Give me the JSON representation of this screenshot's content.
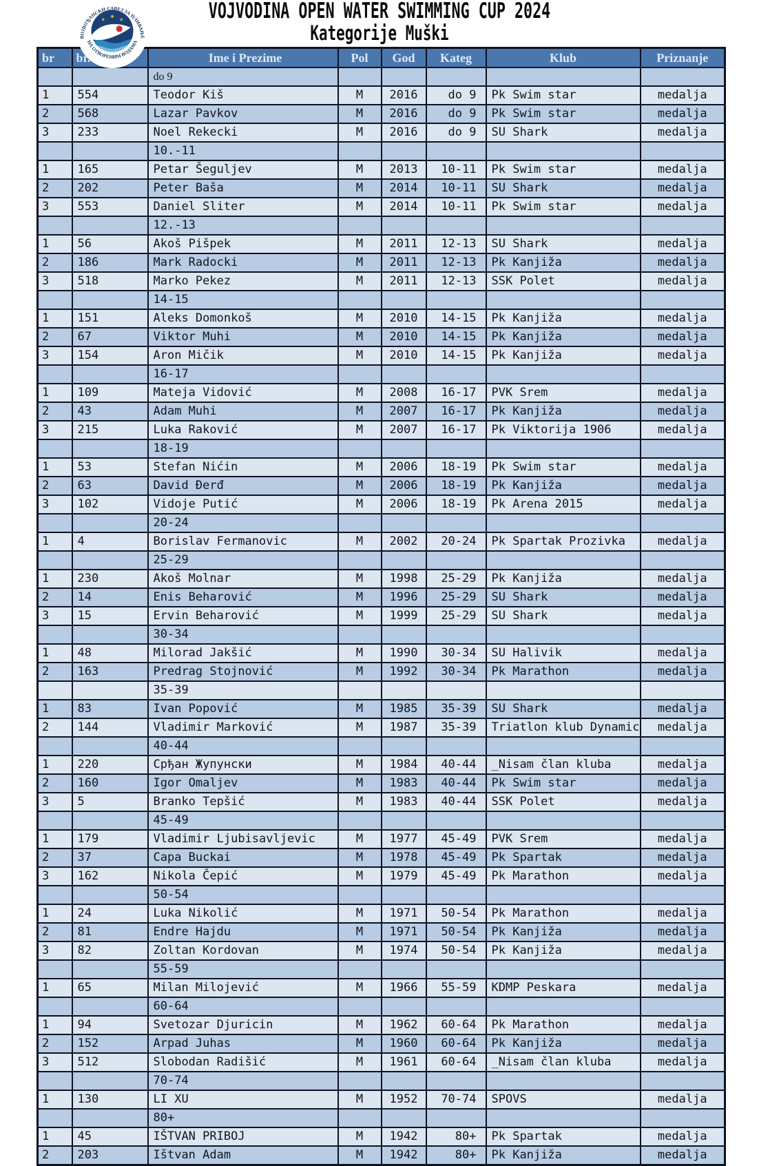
{
  "page": {
    "title": "VOJVODINA OPEN WATER SWIMMING CUP 2024",
    "subtitle": "Kategorije Muški"
  },
  "logo": {
    "text_top": "ВОЈВОЂАНСКИ САВЕЗ ЗА ПЛИВАЊЕ",
    "text_bottom": "НА ОТВОРЕНИМ ВОДАМА"
  },
  "colors": {
    "header_bg": "#4a77ae",
    "row_light": "#dce6f1",
    "row_medium": "#b8cce4",
    "border": "#0d1220",
    "logo_navy": "#1c3f77",
    "logo_wave_blue": "#2e86c1",
    "logo_wave_light": "#7db8e0",
    "logo_star_gold": "#f2c12e",
    "logo_red": "#d03030"
  },
  "table": {
    "columns": [
      "br",
      "br.",
      "Ime i Prezime",
      "Pol",
      "God",
      "Kateg",
      "Klub",
      "Priznanje"
    ],
    "sections": [
      {
        "label": "do 9",
        "serif": true,
        "rows": [
          [
            "1",
            "554",
            "Teodor Kiš",
            "M",
            "2016",
            "do 9",
            "Pk Swim star",
            "medalja"
          ],
          [
            "2",
            "568",
            "Lazar Pavkov",
            "M",
            "2016",
            "do 9",
            "Pk Swim star",
            "medalja"
          ],
          [
            "3",
            "233",
            "Noel Rekecki",
            "M",
            "2016",
            "do 9",
            "SU Shark",
            "medalja"
          ]
        ]
      },
      {
        "label": "10.-11",
        "rows": [
          [
            "1",
            "165",
            "Petar Šeguljev",
            "M",
            "2013",
            "10-11",
            "Pk Swim star",
            "medalja"
          ],
          [
            "2",
            "202",
            "Peter Baša",
            "M",
            "2014",
            "10-11",
            "SU Shark",
            "medalja"
          ],
          [
            "3",
            "553",
            "Daniel Sliter",
            "M",
            "2014",
            "10-11",
            "Pk Swim star",
            "medalja"
          ]
        ]
      },
      {
        "label": "12.-13",
        "rows": [
          [
            "1",
            "56",
            "Akoš Pišpek",
            "M",
            "2011",
            "12-13",
            "SU Shark",
            "medalja"
          ],
          [
            "2",
            "186",
            "Mark Radocki",
            "M",
            "2011",
            "12-13",
            "Pk Kanjiža",
            "medalja"
          ],
          [
            "3",
            "518",
            "Marko Pekez",
            "M",
            "2011",
            "12-13",
            "SSK Polet",
            "medalja"
          ]
        ]
      },
      {
        "label": "14-15",
        "rows": [
          [
            "1",
            "151",
            "Aleks Domonkoš",
            "M",
            "2010",
            "14-15",
            "Pk Kanjiža",
            "medalja"
          ],
          [
            "2",
            "67",
            "Viktor Muhi",
            "M",
            "2010",
            "14-15",
            "Pk Kanjiža",
            "medalja"
          ],
          [
            "3",
            "154",
            "Aron Mičik",
            "M",
            "2010",
            "14-15",
            "Pk Kanjiža",
            "medalja"
          ]
        ]
      },
      {
        "label": "16-17",
        "rows": [
          [
            "1",
            "109",
            "Mateja Vidović",
            "M",
            "2008",
            "16-17",
            "PVK Srem",
            "medalja"
          ],
          [
            "2",
            "43",
            "Adam Muhi",
            "M",
            "2007",
            "16-17",
            "Pk Kanjiža",
            "medalja"
          ],
          [
            "3",
            "215",
            "Luka Raković",
            "M",
            "2007",
            "16-17",
            "Pk Viktorija 1906",
            "medalja"
          ]
        ]
      },
      {
        "label": "18-19",
        "rows": [
          [
            "1",
            "53",
            "Stefan Nićin",
            "M",
            "2006",
            "18-19",
            "Pk Swim star",
            "medalja"
          ],
          [
            "2",
            "63",
            "David Đerđ",
            "M",
            "2006",
            "18-19",
            "Pk Kanjiža",
            "medalja"
          ],
          [
            "3",
            "102",
            "Vidoje Putić",
            "M",
            "2006",
            "18-19",
            "Pk Arena 2015",
            "medalja"
          ]
        ]
      },
      {
        "label": "20-24",
        "rows": [
          [
            "1",
            "4",
            "Borislav Fermanovic",
            "M",
            "2002",
            "20-24",
            "Pk Spartak Prozivka",
            "medalja"
          ]
        ]
      },
      {
        "label": "25-29",
        "rows": [
          [
            "1",
            "230",
            "Akoš Molnar",
            "M",
            "1998",
            "25-29",
            "Pk Kanjiža",
            "medalja"
          ],
          [
            "2",
            "14",
            "Enis Beharović",
            "M",
            "1996",
            "25-29",
            "SU Shark",
            "medalja"
          ],
          [
            "3",
            "15",
            "Ervin Beharović",
            "M",
            "1999",
            "25-29",
            "SU Shark",
            "medalja"
          ]
        ]
      },
      {
        "label": "30-34",
        "rows": [
          [
            "1",
            "48",
            "Milorad Jakšić",
            "M",
            "1990",
            "30-34",
            "SU Halivik",
            "medalja"
          ],
          [
            "2",
            "163",
            "Predrag Stojnović",
            "M",
            "1992",
            "30-34",
            "Pk Marathon",
            "medalja"
          ]
        ]
      },
      {
        "label": "35-39",
        "rows": [
          [
            "1",
            "83",
            "Ivan Popović",
            "M",
            "1985",
            "35-39",
            "SU Shark",
            "medalja"
          ],
          [
            "2",
            "144",
            "Vladimir Marković",
            "M",
            "1987",
            "35-39",
            "Triatlon klub Dynamic",
            "medalja"
          ]
        ]
      },
      {
        "label": "40-44",
        "rows": [
          [
            "1",
            "220",
            "Срђан Жупунски",
            "M",
            "1984",
            "40-44",
            "_Nisam član kluba",
            "medalja"
          ],
          [
            "2",
            "160",
            "Igor Omaljev",
            "M",
            "1983",
            "40-44",
            "Pk Swim star",
            "medalja"
          ],
          [
            "3",
            "5",
            "Branko Tepšić",
            "M",
            "1983",
            "40-44",
            "SSK Polet",
            "medalja"
          ]
        ]
      },
      {
        "label": "45-49",
        "rows": [
          [
            "1",
            "179",
            "Vladimir Ljubisavljevic",
            "M",
            "1977",
            "45-49",
            "PVK Srem",
            "medalja"
          ],
          [
            "2",
            "37",
            "Capa Buckai",
            "M",
            "1978",
            "45-49",
            "Pk Spartak",
            "medalja"
          ],
          [
            "3",
            "162",
            "Nikola Čepić",
            "M",
            "1979",
            "45-49",
            "Pk Marathon",
            "medalja"
          ]
        ]
      },
      {
        "label": "50-54",
        "rows": [
          [
            "1",
            "24",
            "Luka Nikolić",
            "M",
            "1971",
            "50-54",
            "Pk Marathon",
            "medalja"
          ],
          [
            "2",
            "81",
            "Endre Hajdu",
            "M",
            "1971",
            "50-54",
            "Pk Kanjiža",
            "medalja"
          ],
          [
            "3",
            "82",
            "Zoltan Kordovan",
            "M",
            "1974",
            "50-54",
            "Pk Kanjiža",
            "medalja"
          ]
        ]
      },
      {
        "label": "55-59",
        "rows": [
          [
            "1",
            "65",
            "Milan Milojević",
            "M",
            "1966",
            "55-59",
            "KDMP Peskara",
            "medalja"
          ]
        ]
      },
      {
        "label": "60-64",
        "rows": [
          [
            "1",
            "94",
            "Svetozar Djuricin",
            "M",
            "1962",
            "60-64",
            "Pk Marathon",
            "medalja"
          ],
          [
            "2",
            "152",
            "Arpad Juhas",
            "M",
            "1960",
            "60-64",
            "Pk Kanjiža",
            "medalja"
          ],
          [
            "3",
            "512",
            "Slobodan Radišić",
            "M",
            "1961",
            "60-64",
            "_Nisam član kluba",
            "medalja"
          ]
        ]
      },
      {
        "label": "70-74",
        "rows": [
          [
            "1",
            "130",
            "LI XU",
            "M",
            "1952",
            "70-74",
            "SPOVS",
            "medalja"
          ]
        ]
      },
      {
        "label": "80+",
        "rows": [
          [
            "1",
            "45",
            "IŠTVAN PRIBOJ",
            "M",
            "1942",
            "80+",
            "Pk Spartak",
            "medalja"
          ],
          [
            "2",
            "203",
            "Ištvan Adam",
            "M",
            "1942",
            "80+",
            "Pk Kanjiža",
            "medalja"
          ]
        ]
      }
    ]
  }
}
